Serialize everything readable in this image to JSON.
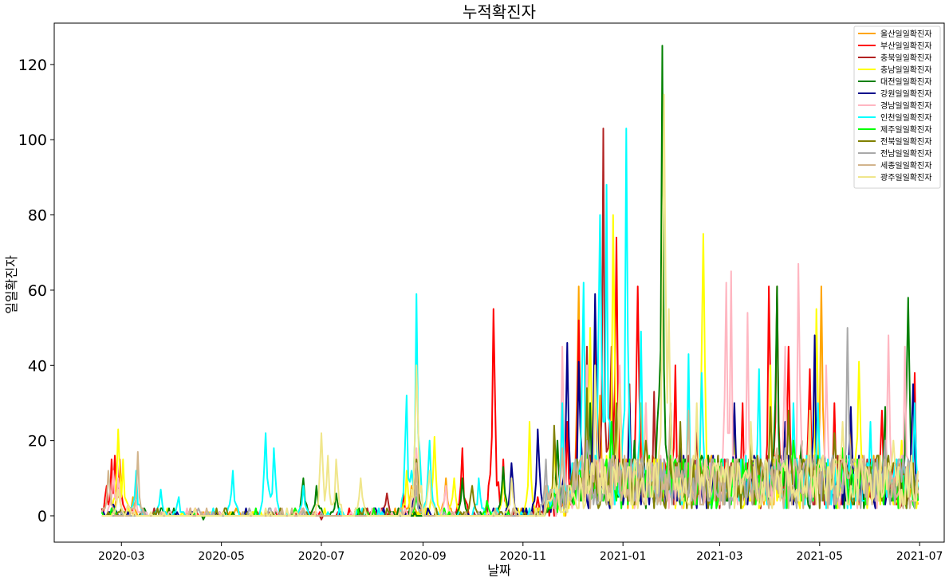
{
  "chart_data": {
    "type": "line",
    "title": "누적확진자",
    "xlabel": "날짜",
    "ylabel": "일일확진자",
    "x_range": [
      "2020-01-20",
      "2021-07-16"
    ],
    "date_range": [
      "2020-02-18",
      "2021-06-30"
    ],
    "ylim": [
      -7,
      131
    ],
    "x_ticks": [
      "2020-03",
      "2020-05",
      "2020-07",
      "2020-09",
      "2020-11",
      "2021-01",
      "2021-03",
      "2021-05",
      "2021-07"
    ],
    "x_tick_dates": [
      "2020-03-01",
      "2020-05-01",
      "2020-07-01",
      "2020-09-01",
      "2020-11-01",
      "2021-01-01",
      "2021-03-01",
      "2021-05-01",
      "2021-07-01"
    ],
    "y_ticks": [
      0,
      20,
      40,
      60,
      80,
      100,
      120
    ],
    "legend_position": "top-right",
    "grid": false,
    "series": [
      {
        "name": "울산일일확진자",
        "color": "#ffa500",
        "peaks": [
          [
            "2020-02-28",
            9
          ],
          [
            "2020-03-08",
            5
          ],
          [
            "2020-05-10",
            2
          ],
          [
            "2020-08-25",
            8
          ],
          [
            "2020-09-15",
            10
          ],
          [
            "2020-11-20",
            10
          ],
          [
            "2020-12-05",
            61
          ],
          [
            "2020-12-18",
            32
          ],
          [
            "2021-01-12",
            30
          ],
          [
            "2021-02-15",
            25
          ],
          [
            "2021-03-20",
            20
          ],
          [
            "2021-04-25",
            35
          ],
          [
            "2021-05-02",
            61
          ],
          [
            "2021-05-20",
            25
          ],
          [
            "2021-06-15",
            12
          ]
        ]
      },
      {
        "name": "부산일일확진자",
        "color": "#ff0000",
        "peaks": [
          [
            "2020-02-21",
            8
          ],
          [
            "2020-02-24",
            15
          ],
          [
            "2020-02-26",
            16
          ],
          [
            "2020-02-29",
            15
          ],
          [
            "2020-03-05",
            3
          ],
          [
            "2020-04-15",
            2
          ],
          [
            "2020-06-15",
            1
          ],
          [
            "2020-08-20",
            6
          ],
          [
            "2020-09-25",
            18
          ],
          [
            "2020-10-14",
            55
          ],
          [
            "2020-10-20",
            15
          ],
          [
            "2020-11-10",
            5
          ],
          [
            "2020-11-28",
            25
          ],
          [
            "2020-12-05",
            52
          ],
          [
            "2020-12-15",
            50
          ],
          [
            "2020-12-28",
            74
          ],
          [
            "2021-01-10",
            61
          ],
          [
            "2021-02-02",
            40
          ],
          [
            "2021-03-15",
            30
          ],
          [
            "2021-03-31",
            61
          ],
          [
            "2021-04-05",
            61
          ],
          [
            "2021-04-12",
            45
          ],
          [
            "2021-04-25",
            39
          ],
          [
            "2021-05-10",
            30
          ],
          [
            "2021-06-08",
            28
          ],
          [
            "2021-06-28",
            38
          ]
        ]
      },
      {
        "name": "충북일일확진자",
        "color": "#b22222",
        "peaks": [
          [
            "2020-02-25",
            2
          ],
          [
            "2020-07-01",
            -1
          ],
          [
            "2020-08-10",
            6
          ],
          [
            "2020-11-15",
            5
          ],
          [
            "2020-12-10",
            45
          ],
          [
            "2020-12-20",
            103
          ],
          [
            "2020-12-25",
            45
          ],
          [
            "2021-01-05",
            35
          ],
          [
            "2021-01-20",
            33
          ],
          [
            "2021-02-15",
            22
          ],
          [
            "2021-03-20",
            15
          ],
          [
            "2021-04-20",
            20
          ],
          [
            "2021-05-15",
            15
          ],
          [
            "2021-06-25",
            12
          ]
        ]
      },
      {
        "name": "충남일일확진자",
        "color": "#ffff00",
        "peaks": [
          [
            "2020-02-28",
            23
          ],
          [
            "2020-03-02",
            15
          ],
          [
            "2020-05-20",
            1
          ],
          [
            "2020-08-22",
            12
          ],
          [
            "2020-09-08",
            21
          ],
          [
            "2020-09-20",
            10
          ],
          [
            "2020-10-20",
            10
          ],
          [
            "2020-11-05",
            25
          ],
          [
            "2020-11-20",
            20
          ],
          [
            "2020-12-12",
            50
          ],
          [
            "2020-12-26",
            80
          ],
          [
            "2021-01-15",
            30
          ],
          [
            "2021-02-19",
            75
          ],
          [
            "2021-03-10",
            25
          ],
          [
            "2021-04-01",
            40
          ],
          [
            "2021-04-29",
            55
          ],
          [
            "2021-05-25",
            41
          ],
          [
            "2021-06-20",
            20
          ]
        ]
      },
      {
        "name": "대전일일확진자",
        "color": "#008000",
        "peaks": [
          [
            "2020-02-25",
            3
          ],
          [
            "2020-03-15",
            2
          ],
          [
            "2020-04-20",
            -1
          ],
          [
            "2020-06-20",
            10
          ],
          [
            "2020-06-28",
            8
          ],
          [
            "2020-07-10",
            6
          ],
          [
            "2020-09-25",
            10
          ],
          [
            "2020-10-20",
            13
          ],
          [
            "2020-11-22",
            20
          ],
          [
            "2020-12-12",
            30
          ],
          [
            "2021-01-08",
            20
          ],
          [
            "2021-01-25",
            125
          ],
          [
            "2021-01-30",
            30
          ],
          [
            "2021-02-25",
            15
          ],
          [
            "2021-04-05",
            61
          ],
          [
            "2021-04-20",
            20
          ],
          [
            "2021-06-10",
            29
          ],
          [
            "2021-06-24",
            58
          ]
        ]
      },
      {
        "name": "강원일일확진자",
        "color": "#00008b",
        "peaks": [
          [
            "2020-02-25",
            3
          ],
          [
            "2020-08-28",
            16
          ],
          [
            "2020-10-25",
            14
          ],
          [
            "2020-11-10",
            23
          ],
          [
            "2020-11-28",
            46
          ],
          [
            "2020-12-05",
            41
          ],
          [
            "2020-12-15",
            59
          ],
          [
            "2021-01-05",
            30
          ],
          [
            "2021-02-05",
            20
          ],
          [
            "2021-03-10",
            30
          ],
          [
            "2021-04-10",
            25
          ],
          [
            "2021-04-28",
            48
          ],
          [
            "2021-05-20",
            29
          ],
          [
            "2021-06-27",
            35
          ]
        ]
      },
      {
        "name": "경남일일확진자",
        "color": "#ffb6c1",
        "peaks": [
          [
            "2020-02-25",
            12
          ],
          [
            "2020-02-28",
            10
          ],
          [
            "2020-03-10",
            4
          ],
          [
            "2020-08-28",
            18
          ],
          [
            "2020-09-15",
            8
          ],
          [
            "2020-11-25",
            45
          ],
          [
            "2020-12-10",
            40
          ],
          [
            "2020-12-30",
            40
          ],
          [
            "2021-01-15",
            30
          ],
          [
            "2021-03-05",
            62
          ],
          [
            "2021-03-08",
            65
          ],
          [
            "2021-03-18",
            54
          ],
          [
            "2021-04-10",
            45
          ],
          [
            "2021-04-18",
            67
          ],
          [
            "2021-05-05",
            40
          ],
          [
            "2021-06-12",
            48
          ],
          [
            "2021-06-22",
            45
          ]
        ]
      },
      {
        "name": "인천일일확진자",
        "color": "#00ffff",
        "peaks": [
          [
            "2020-03-10",
            12
          ],
          [
            "2020-03-25",
            7
          ],
          [
            "2020-04-05",
            5
          ],
          [
            "2020-05-08",
            12
          ],
          [
            "2020-05-28",
            22
          ],
          [
            "2020-06-02",
            18
          ],
          [
            "2020-06-20",
            8
          ],
          [
            "2020-08-22",
            32
          ],
          [
            "2020-08-28",
            59
          ],
          [
            "2020-09-05",
            20
          ],
          [
            "2020-10-05",
            10
          ],
          [
            "2020-11-25",
            30
          ],
          [
            "2020-12-08",
            62
          ],
          [
            "2020-12-18",
            80
          ],
          [
            "2020-12-22",
            88
          ],
          [
            "2021-01-03",
            103
          ],
          [
            "2021-01-12",
            49
          ],
          [
            "2021-02-10",
            43
          ],
          [
            "2021-02-18",
            38
          ],
          [
            "2021-03-25",
            39
          ],
          [
            "2021-04-15",
            30
          ],
          [
            "2021-04-30",
            30
          ],
          [
            "2021-06-01",
            25
          ],
          [
            "2021-06-28",
            30
          ]
        ]
      },
      {
        "name": "제주일일확진자",
        "color": "#00ff00",
        "peaks": [
          [
            "2020-02-25",
            1
          ],
          [
            "2020-06-15",
            2
          ],
          [
            "2020-08-28",
            5
          ],
          [
            "2020-10-10",
            4
          ],
          [
            "2020-12-10",
            20
          ],
          [
            "2020-12-25",
            25
          ],
          [
            "2021-01-15",
            12
          ],
          [
            "2021-02-20",
            10
          ],
          [
            "2021-03-30",
            12
          ],
          [
            "2021-04-15",
            20
          ],
          [
            "2021-05-15",
            18
          ],
          [
            "2021-06-20",
            15
          ]
        ]
      },
      {
        "name": "전북일일확진자",
        "color": "#808000",
        "peaks": [
          [
            "2020-03-01",
            2
          ],
          [
            "2020-08-28",
            15
          ],
          [
            "2020-10-01",
            8
          ],
          [
            "2020-11-20",
            24
          ],
          [
            "2020-12-10",
            34
          ],
          [
            "2020-12-28",
            30
          ],
          [
            "2021-01-15",
            20
          ],
          [
            "2021-02-05",
            25
          ],
          [
            "2021-03-20",
            20
          ],
          [
            "2021-04-01",
            29
          ],
          [
            "2021-04-12",
            28
          ],
          [
            "2021-05-10",
            22
          ],
          [
            "2021-06-05",
            16
          ]
        ]
      },
      {
        "name": "전남일일확진자",
        "color": "#a9a9a9",
        "peaks": [
          [
            "2020-03-01",
            1
          ],
          [
            "2020-08-28",
            8
          ],
          [
            "2020-11-15",
            15
          ],
          [
            "2020-12-10",
            20
          ],
          [
            "2021-01-10",
            15
          ],
          [
            "2021-02-25",
            15
          ],
          [
            "2021-04-10",
            18
          ],
          [
            "2021-05-18",
            50
          ],
          [
            "2021-06-10",
            20
          ]
        ]
      },
      {
        "name": "세종일일확진자",
        "color": "#d2b48c",
        "peaks": [
          [
            "2020-02-22",
            12
          ],
          [
            "2020-03-11",
            17
          ],
          [
            "2020-06-20",
            2
          ],
          [
            "2020-08-28",
            14
          ],
          [
            "2020-11-25",
            18
          ],
          [
            "2020-12-28",
            15
          ],
          [
            "2021-01-30",
            30
          ],
          [
            "2021-02-10",
            28
          ],
          [
            "2021-04-05",
            18
          ],
          [
            "2021-05-20",
            12
          ],
          [
            "2021-06-15",
            10
          ]
        ]
      },
      {
        "name": "광주일일확진자",
        "color": "#f0e68c",
        "peaks": [
          [
            "2020-02-28",
            7
          ],
          [
            "2020-03-05",
            3
          ],
          [
            "2020-07-01",
            22
          ],
          [
            "2020-07-05",
            16
          ],
          [
            "2020-07-10",
            15
          ],
          [
            "2020-07-25",
            10
          ],
          [
            "2020-08-28",
            40
          ],
          [
            "2020-09-05",
            12
          ],
          [
            "2020-10-25",
            10
          ],
          [
            "2020-11-20",
            10
          ],
          [
            "2020-12-15",
            40
          ],
          [
            "2020-12-30",
            35
          ],
          [
            "2021-01-26",
            112
          ],
          [
            "2021-01-29",
            55
          ],
          [
            "2021-02-15",
            30
          ],
          [
            "2021-03-20",
            25
          ],
          [
            "2021-04-25",
            28
          ],
          [
            "2021-05-15",
            25
          ],
          [
            "2021-06-15",
            20
          ]
        ]
      }
    ]
  }
}
